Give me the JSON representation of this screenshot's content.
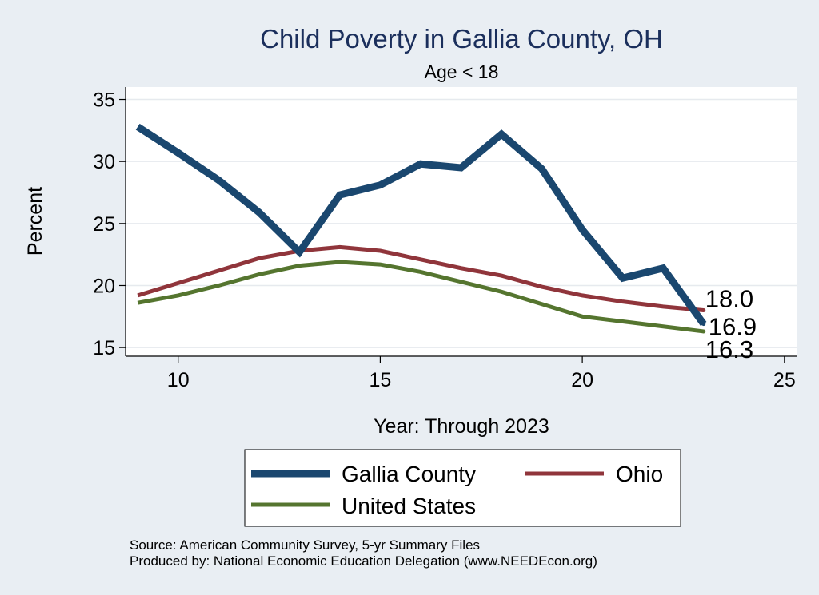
{
  "chart_data": {
    "type": "line",
    "title": "Child Poverty in Gallia County, OH",
    "subtitle": "Age < 18",
    "xlabel": "Year: Through 2023",
    "ylabel": "Percent",
    "xlim": [
      8.7,
      25.3
    ],
    "ylim": [
      14.3,
      36.0
    ],
    "xticks": [
      10,
      15,
      20,
      25
    ],
    "yticks": [
      15,
      20,
      25,
      30,
      35
    ],
    "grid": true,
    "legend": "bottom",
    "x": [
      9,
      10,
      11,
      12,
      13,
      14,
      15,
      16,
      17,
      18,
      19,
      20,
      21,
      22,
      23
    ],
    "series": [
      {
        "name": "Gallia County",
        "color": "#1a476f",
        "values": [
          32.8,
          30.7,
          28.5,
          25.9,
          22.7,
          27.3,
          28.1,
          29.8,
          29.5,
          32.2,
          29.4,
          24.5,
          20.6,
          21.4,
          16.9
        ],
        "end_label": "16.9"
      },
      {
        "name": "Ohio",
        "color": "#90353b",
        "values": [
          19.2,
          20.2,
          21.2,
          22.2,
          22.8,
          23.1,
          22.8,
          22.1,
          21.4,
          20.8,
          19.9,
          19.2,
          18.7,
          18.3,
          18.0
        ],
        "end_label": "18.0"
      },
      {
        "name": "United States",
        "color": "#55752f",
        "values": [
          18.6,
          19.2,
          20.0,
          20.9,
          21.6,
          21.9,
          21.7,
          21.1,
          20.3,
          19.5,
          18.5,
          17.5,
          17.1,
          16.7,
          16.3
        ],
        "end_label": "16.3"
      }
    ],
    "source_note": "Source: American Community Survey, 5-yr Summary Files",
    "producer_note": "Produced by: National Economic Education Delegation (www.NEEDEcon.org)"
  }
}
